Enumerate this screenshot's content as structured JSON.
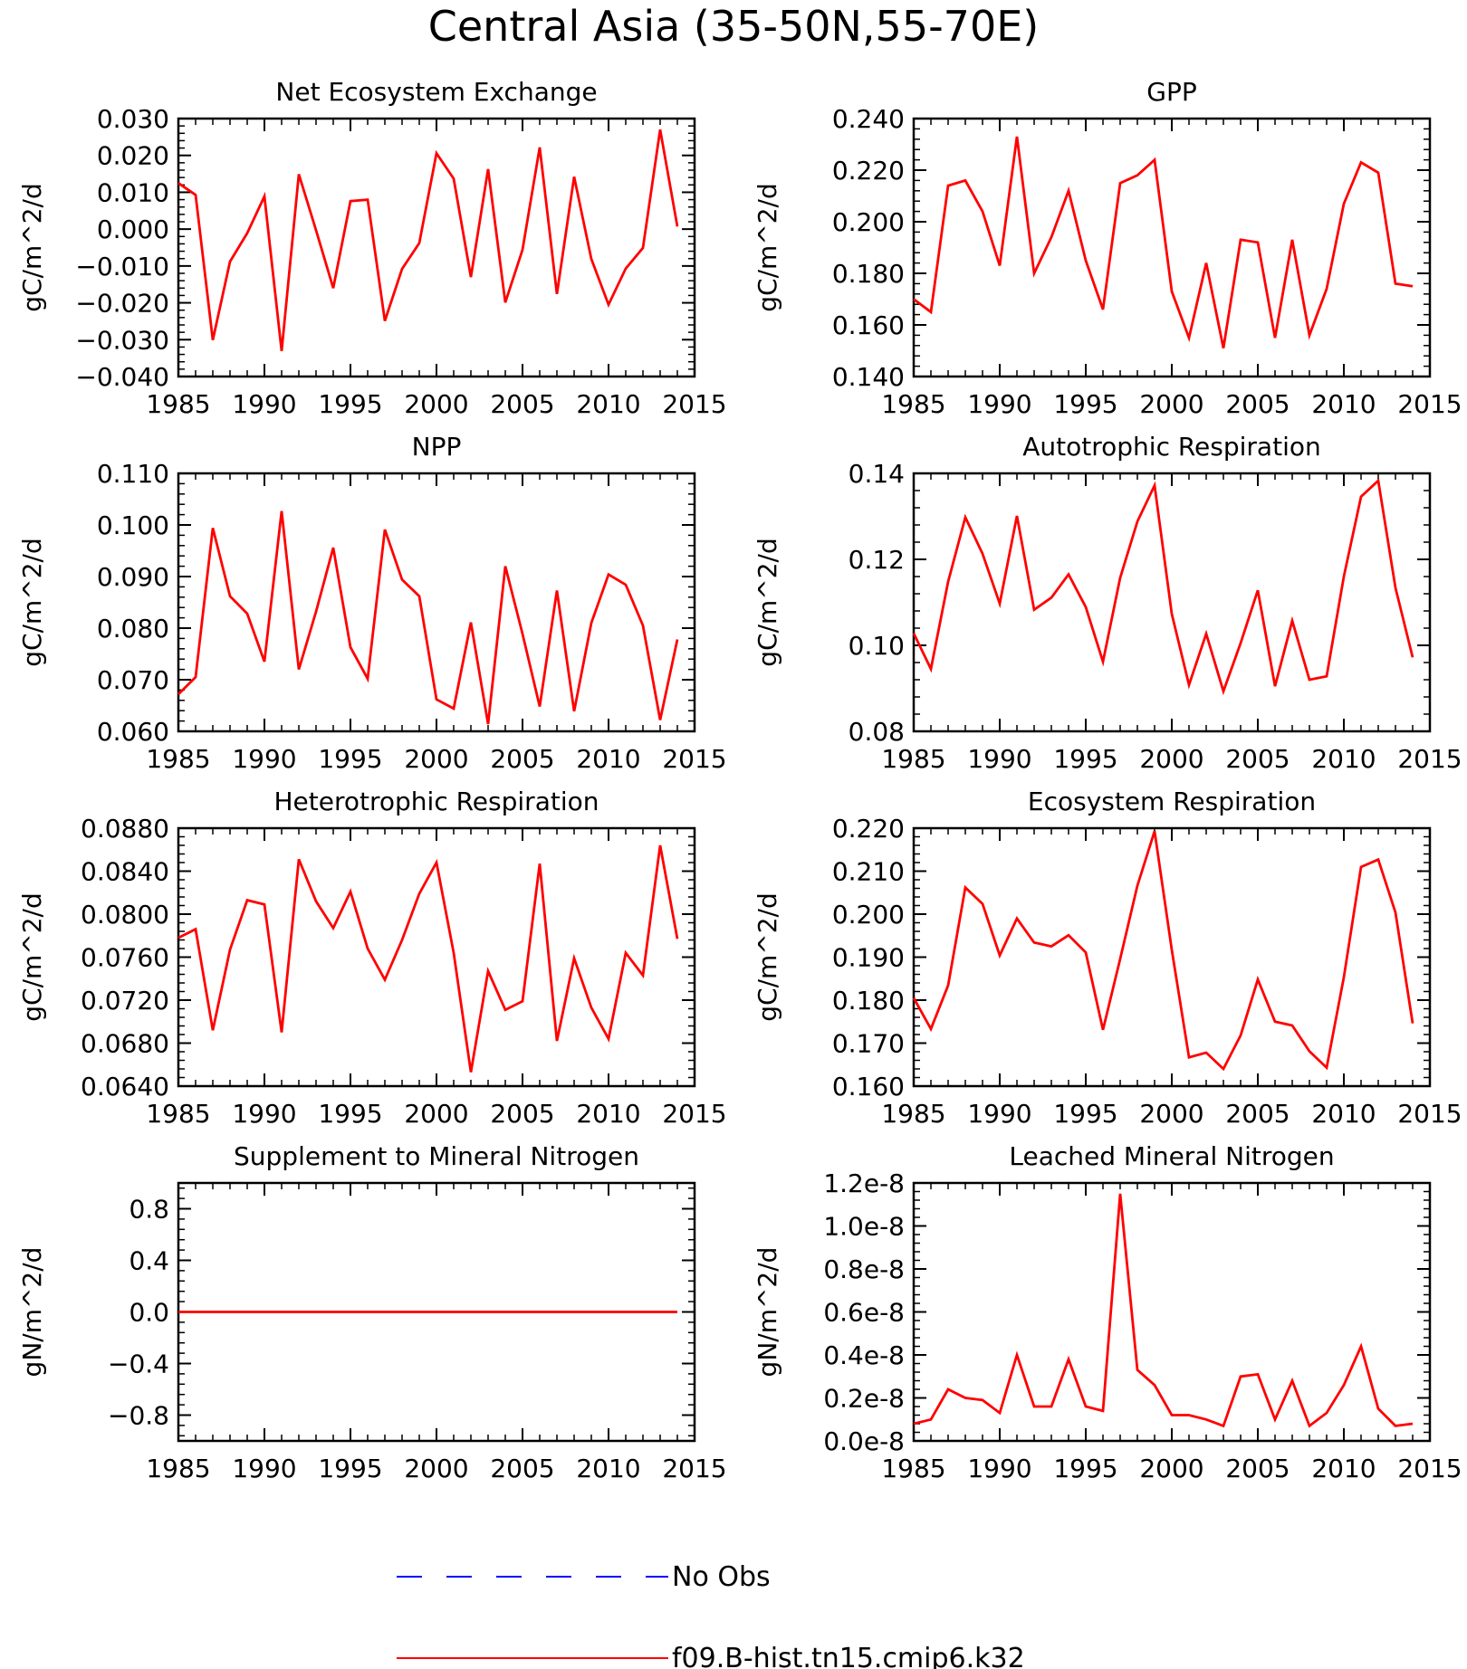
{
  "figure_title": "Central Asia (35-50N,55-70E)",
  "legend": {
    "entries": [
      {
        "label": "No Obs",
        "color": "#0000ff",
        "style": "dashed"
      },
      {
        "label": "f09.B-hist.tn15.cmip6.k32",
        "color": "#ff0000",
        "style": "solid"
      }
    ]
  },
  "chart_data": [
    {
      "type": "line",
      "title": "Net Ecosystem Exchange",
      "ylabel": "gC/m^2/d",
      "xlim": [
        1985,
        2015
      ],
      "ylim": [
        -0.04,
        0.03
      ],
      "x_ticks": [
        "1985",
        "1990",
        "1995",
        "2000",
        "2005",
        "2010",
        "2015"
      ],
      "y_ticks": [
        "-0.040",
        "-0.030",
        "-0.020",
        "-0.010",
        "0.000",
        "0.010",
        "0.020",
        "0.030"
      ],
      "x": [
        1985,
        1986,
        1987,
        1988,
        1989,
        1990,
        1991,
        1992,
        1993,
        1994,
        1995,
        1996,
        1997,
        1998,
        1999,
        2000,
        2001,
        2002,
        2003,
        2004,
        2005,
        2006,
        2007,
        2008,
        2009,
        2010,
        2011,
        2012,
        2013,
        2014
      ],
      "series": [
        {
          "name": "f09.B-hist.tn15.cmip6.k32",
          "color": "#ff0000",
          "values": [
            0.0125,
            0.0093,
            -0.0301,
            -0.0088,
            -0.0011,
            0.0089,
            -0.0331,
            0.0149,
            -0.0003,
            -0.016,
            0.0076,
            0.008,
            -0.0249,
            -0.0108,
            -0.0038,
            0.0206,
            0.0137,
            -0.013,
            0.0163,
            -0.0199,
            -0.0056,
            0.0222,
            -0.0176,
            0.0142,
            -0.0081,
            -0.0205,
            -0.0107,
            -0.0051,
            0.027,
            0.0007
          ]
        }
      ]
    },
    {
      "type": "line",
      "title": "GPP",
      "ylabel": "gC/m^2/d",
      "xlim": [
        1985,
        2015
      ],
      "ylim": [
        0.14,
        0.24
      ],
      "x_ticks": [
        "1985",
        "1990",
        "1995",
        "2000",
        "2005",
        "2010",
        "2015"
      ],
      "y_ticks": [
        "0.140",
        "0.160",
        "0.180",
        "0.200",
        "0.220",
        "0.240"
      ],
      "x": [
        1985,
        1986,
        1987,
        1988,
        1989,
        1990,
        1991,
        1992,
        1993,
        1994,
        1995,
        1996,
        1997,
        1998,
        1999,
        2000,
        2001,
        2002,
        2003,
        2004,
        2005,
        2006,
        2007,
        2008,
        2009,
        2010,
        2011,
        2012,
        2013,
        2014
      ],
      "series": [
        {
          "name": "f09.B-hist.tn15.cmip6.k32",
          "color": "#ff0000",
          "values": [
            0.17,
            0.165,
            0.214,
            0.216,
            0.204,
            0.183,
            0.233,
            0.18,
            0.194,
            0.212,
            0.185,
            0.166,
            0.215,
            0.218,
            0.224,
            0.173,
            0.155,
            0.184,
            0.151,
            0.193,
            0.192,
            0.155,
            0.193,
            0.156,
            0.174,
            0.207,
            0.223,
            0.219,
            0.176,
            0.175
          ]
        }
      ]
    },
    {
      "type": "line",
      "title": "NPP",
      "ylabel": "gC/m^2/d",
      "xlim": [
        1985,
        2015
      ],
      "ylim": [
        0.06,
        0.11
      ],
      "x_ticks": [
        "1985",
        "1990",
        "1995",
        "2000",
        "2005",
        "2010",
        "2015"
      ],
      "y_ticks": [
        "0.060",
        "0.070",
        "0.080",
        "0.090",
        "0.100",
        "0.110"
      ],
      "x": [
        1985,
        1986,
        1987,
        1988,
        1989,
        1990,
        1991,
        1992,
        1993,
        1994,
        1995,
        1996,
        1997,
        1998,
        1999,
        2000,
        2001,
        2002,
        2003,
        2004,
        2005,
        2006,
        2007,
        2008,
        2009,
        2010,
        2011,
        2012,
        2013,
        2014
      ],
      "series": [
        {
          "name": "f09.B-hist.tn15.cmip6.k32",
          "color": "#ff0000",
          "values": [
            0.0672,
            0.0705,
            0.0994,
            0.0862,
            0.0828,
            0.0735,
            0.1027,
            0.072,
            0.0832,
            0.0956,
            0.0763,
            0.0702,
            0.0991,
            0.0894,
            0.0862,
            0.0662,
            0.0644,
            0.0811,
            0.0614,
            0.092,
            0.0789,
            0.0648,
            0.0873,
            0.0639,
            0.081,
            0.0904,
            0.0884,
            0.0805,
            0.0622,
            0.0778
          ]
        }
      ]
    },
    {
      "type": "line",
      "title": "Autotrophic Respiration",
      "ylabel": "gC/m^2/d",
      "xlim": [
        1985,
        2015
      ],
      "ylim": [
        0.08,
        0.14
      ],
      "x_ticks": [
        "1985",
        "1990",
        "1995",
        "2000",
        "2005",
        "2010",
        "2015"
      ],
      "y_ticks": [
        "0.08",
        "0.10",
        "0.12",
        "0.14"
      ],
      "x": [
        1985,
        1986,
        1987,
        1988,
        1989,
        1990,
        1991,
        1992,
        1993,
        1994,
        1995,
        1996,
        1997,
        1998,
        1999,
        2000,
        2001,
        2002,
        2003,
        2004,
        2005,
        2006,
        2007,
        2008,
        2009,
        2010,
        2011,
        2012,
        2013,
        2014
      ],
      "series": [
        {
          "name": "f09.B-hist.tn15.cmip6.k32",
          "color": "#ff0000",
          "values": [
            0.1028,
            0.0945,
            0.1148,
            0.1298,
            0.1213,
            0.1097,
            0.1301,
            0.1083,
            0.1111,
            0.1165,
            0.1089,
            0.0962,
            0.1157,
            0.1288,
            0.1372,
            0.1073,
            0.0908,
            0.1027,
            0.0893,
            0.1005,
            0.1128,
            0.0905,
            0.1057,
            0.092,
            0.0928,
            0.116,
            0.1346,
            0.1383,
            0.1134,
            0.0972
          ]
        }
      ]
    },
    {
      "type": "line",
      "title": "Heterotrophic Respiration",
      "ylabel": "gC/m^2/d",
      "xlim": [
        1985,
        2015
      ],
      "ylim": [
        0.064,
        0.088
      ],
      "x_ticks": [
        "1985",
        "1990",
        "1995",
        "2000",
        "2005",
        "2010",
        "2015"
      ],
      "y_ticks": [
        "0.0640",
        "0.0680",
        "0.0720",
        "0.0760",
        "0.0800",
        "0.0840",
        "0.0880"
      ],
      "x": [
        1985,
        1986,
        1987,
        1988,
        1989,
        1990,
        1991,
        1992,
        1993,
        1994,
        1995,
        1996,
        1997,
        1998,
        1999,
        2000,
        2001,
        2002,
        2003,
        2004,
        2005,
        2006,
        2007,
        2008,
        2009,
        2010,
        2011,
        2012,
        2013,
        2014
      ],
      "series": [
        {
          "name": "f09.B-hist.tn15.cmip6.k32",
          "color": "#ff0000",
          "values": [
            0.0778,
            0.0786,
            0.0692,
            0.0767,
            0.0813,
            0.0809,
            0.069,
            0.0851,
            0.0812,
            0.0787,
            0.0821,
            0.0768,
            0.0739,
            0.0776,
            0.0819,
            0.0848,
            0.0764,
            0.0653,
            0.0747,
            0.0711,
            0.0719,
            0.0847,
            0.0682,
            0.0759,
            0.0713,
            0.0684,
            0.0764,
            0.0743,
            0.0864,
            0.0777
          ]
        }
      ]
    },
    {
      "type": "line",
      "title": "Ecosystem Respiration",
      "ylabel": "gC/m^2/d",
      "xlim": [
        1985,
        2015
      ],
      "ylim": [
        0.16,
        0.22
      ],
      "x_ticks": [
        "1985",
        "1990",
        "1995",
        "2000",
        "2005",
        "2010",
        "2015"
      ],
      "y_ticks": [
        "0.160",
        "0.170",
        "0.180",
        "0.190",
        "0.200",
        "0.210",
        "0.220"
      ],
      "x": [
        1985,
        1986,
        1987,
        1988,
        1989,
        1990,
        1991,
        1992,
        1993,
        1994,
        1995,
        1996,
        1997,
        1998,
        1999,
        2000,
        2001,
        2002,
        2003,
        2004,
        2005,
        2006,
        2007,
        2008,
        2009,
        2010,
        2011,
        2012,
        2013,
        2014
      ],
      "series": [
        {
          "name": "f09.B-hist.tn15.cmip6.k32",
          "color": "#ff0000",
          "values": [
            0.1805,
            0.1733,
            0.1834,
            0.2062,
            0.2024,
            0.1904,
            0.199,
            0.1934,
            0.1925,
            0.1951,
            0.1911,
            0.1731,
            0.1896,
            0.2066,
            0.2193,
            0.1917,
            0.1667,
            0.1678,
            0.164,
            0.1718,
            0.1848,
            0.175,
            0.1741,
            0.1681,
            0.1643,
            0.1853,
            0.211,
            0.2127,
            0.2004,
            0.1746
          ]
        }
      ]
    },
    {
      "type": "line",
      "title": "Supplement to Mineral Nitrogen",
      "ylabel": "gN/m^2/d",
      "xlim": [
        1985,
        2015
      ],
      "ylim": [
        -1.0,
        1.0
      ],
      "x_ticks": [
        "1985",
        "1990",
        "1995",
        "2000",
        "2005",
        "2010",
        "2015"
      ],
      "y_ticks": [
        "-0.8",
        "-0.4",
        "0.0",
        "0.4",
        "0.8"
      ],
      "x": [
        1985,
        1986,
        1987,
        1988,
        1989,
        1990,
        1991,
        1992,
        1993,
        1994,
        1995,
        1996,
        1997,
        1998,
        1999,
        2000,
        2001,
        2002,
        2003,
        2004,
        2005,
        2006,
        2007,
        2008,
        2009,
        2010,
        2011,
        2012,
        2013,
        2014
      ],
      "series": [
        {
          "name": "f09.B-hist.tn15.cmip6.k32",
          "color": "#ff0000",
          "values": [
            0,
            0,
            0,
            0,
            0,
            0,
            0,
            0,
            0,
            0,
            0,
            0,
            0,
            0,
            0,
            0,
            0,
            0,
            0,
            0,
            0,
            0,
            0,
            0,
            0,
            0,
            0,
            0,
            0,
            0
          ]
        }
      ]
    },
    {
      "type": "line",
      "title": "Leached Mineral Nitrogen",
      "ylabel": "gN/m^2/d",
      "xlim": [
        1985,
        2015
      ],
      "ylim": [
        0.0,
        1.2e-08
      ],
      "x_ticks": [
        "1985",
        "1990",
        "1995",
        "2000",
        "2005",
        "2010",
        "2015"
      ],
      "y_ticks": [
        "0.0e-8",
        "0.2e-8",
        "0.4e-8",
        "0.6e-8",
        "0.8e-8",
        "1.0e-8",
        "1.2e-8"
      ],
      "x": [
        1985,
        1986,
        1987,
        1988,
        1989,
        1990,
        1991,
        1992,
        1993,
        1994,
        1995,
        1996,
        1997,
        1998,
        1999,
        2000,
        2001,
        2002,
        2003,
        2004,
        2005,
        2006,
        2007,
        2008,
        2009,
        2010,
        2011,
        2012,
        2013,
        2014
      ],
      "series": [
        {
          "name": "f09.B-hist.tn15.cmip6.k32",
          "color": "#ff0000",
          "values": [
            8e-10,
            1e-09,
            2.4e-09,
            2e-09,
            1.9e-09,
            1.3e-09,
            4e-09,
            1.6e-09,
            1.6e-09,
            3.8e-09,
            1.6e-09,
            1.4e-09,
            1.15e-08,
            3.3e-09,
            2.6e-09,
            1.2e-09,
            1.2e-09,
            1e-09,
            7e-10,
            3e-09,
            3.1e-09,
            1e-09,
            2.8e-09,
            7e-10,
            1.3e-09,
            2.6e-09,
            4.4e-09,
            1.5e-09,
            7e-10,
            8e-10
          ]
        }
      ]
    }
  ]
}
